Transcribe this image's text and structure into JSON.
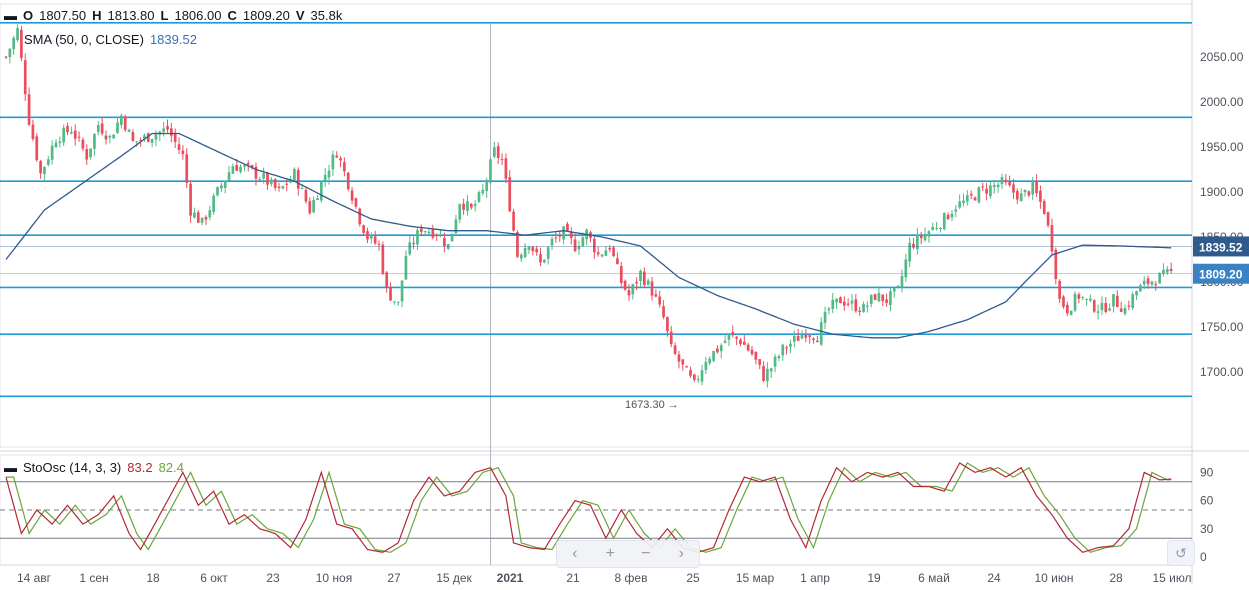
{
  "header": {
    "o_key": "O",
    "o_val": "1807.50",
    "h_key": "H",
    "h_val": "1813.80",
    "l_key": "L",
    "l_val": "1806.00",
    "c_key": "C",
    "c_val": "1809.20",
    "v_key": "V",
    "v_val": "35.8k"
  },
  "sma_legend": {
    "label": "SMA (50, 0, CLOSE)",
    "value": "1839.52",
    "color": "#2962ff"
  },
  "stoch_legend": {
    "label": "StoOsc (14, 3, 3)",
    "k_value": "83.2",
    "d_value": "82.4",
    "k_color": "#b22833",
    "d_color": "#6ba539"
  },
  "nav_buttons": {
    "left": "‹",
    "plus": "+",
    "minus": "−",
    "right": "›",
    "reset": "↺"
  },
  "chart_data": {
    "type": "candlestick",
    "y_axis": {
      "ylim": [
        1650,
        2100
      ],
      "ticks": [
        "1700.00",
        "1750.00",
        "1800.00",
        "1850.00",
        "1900.00",
        "1950.00",
        "2000.00",
        "2050.00"
      ]
    },
    "x_axis_labels": [
      "14 авг",
      "1 сен",
      "18",
      "6 окт",
      "23",
      "10 ноя",
      "27",
      "15 дек",
      "2021",
      "21",
      "8 фев",
      "25",
      "15 мар",
      "1 апр",
      "19",
      "6 май",
      "24",
      "10 июн",
      "28",
      "15 июл"
    ],
    "horizontal_levels": [
      2088,
      1983,
      1912,
      1852,
      1794,
      1742,
      1673
    ],
    "price_tags": [
      {
        "value": 1839.52,
        "label": "1839.52",
        "color": "#2f5a8c"
      },
      {
        "value": 1809.2,
        "label": "1809.20",
        "color": "#3b82c4"
      }
    ],
    "low_marker": {
      "label": "1673.30 →",
      "value": 1673.3
    },
    "close_path": [
      [
        0,
        2050
      ],
      [
        3,
        2080
      ],
      [
        6,
        1980
      ],
      [
        9,
        1920
      ],
      [
        13,
        1960
      ],
      [
        17,
        1970
      ],
      [
        21,
        1940
      ],
      [
        24,
        1975
      ],
      [
        27,
        1960
      ],
      [
        30,
        1985
      ],
      [
        33,
        1955
      ],
      [
        36,
        1960
      ],
      [
        39,
        1965
      ],
      [
        42,
        1970
      ],
      [
        46,
        1940
      ],
      [
        48,
        1880
      ],
      [
        51,
        1865
      ],
      [
        55,
        1900
      ],
      [
        59,
        1930
      ],
      [
        63,
        1925
      ],
      [
        67,
        1915
      ],
      [
        71,
        1900
      ],
      [
        75,
        1920
      ],
      [
        79,
        1880
      ],
      [
        83,
        1920
      ],
      [
        86,
        1945
      ],
      [
        89,
        1910
      ],
      [
        92,
        1870
      ],
      [
        94,
        1850
      ],
      [
        97,
        1840
      ],
      [
        99,
        1790
      ],
      [
        102,
        1775
      ],
      [
        104,
        1830
      ],
      [
        108,
        1860
      ],
      [
        112,
        1855
      ],
      [
        115,
        1840
      ],
      [
        118,
        1890
      ],
      [
        121,
        1880
      ],
      [
        124,
        1900
      ],
      [
        127,
        1945
      ],
      [
        129,
        1935
      ],
      [
        131,
        1885
      ],
      [
        133,
        1830
      ],
      [
        136,
        1845
      ],
      [
        139,
        1820
      ],
      [
        142,
        1845
      ],
      [
        145,
        1855
      ],
      [
        148,
        1840
      ],
      [
        151,
        1855
      ],
      [
        154,
        1830
      ],
      [
        157,
        1840
      ],
      [
        160,
        1800
      ],
      [
        162,
        1785
      ],
      [
        165,
        1810
      ],
      [
        168,
        1790
      ],
      [
        171,
        1760
      ],
      [
        173,
        1725
      ],
      [
        176,
        1705
      ],
      [
        179,
        1685
      ],
      [
        182,
        1715
      ],
      [
        185,
        1725
      ],
      [
        188,
        1740
      ],
      [
        191,
        1735
      ],
      [
        194,
        1720
      ],
      [
        197,
        1695
      ],
      [
        199,
        1705
      ],
      [
        202,
        1725
      ],
      [
        205,
        1735
      ],
      [
        208,
        1745
      ],
      [
        211,
        1740
      ],
      [
        214,
        1770
      ],
      [
        217,
        1780
      ],
      [
        220,
        1775
      ],
      [
        223,
        1770
      ],
      [
        226,
        1785
      ],
      [
        229,
        1780
      ],
      [
        232,
        1790
      ],
      [
        235,
        1840
      ],
      [
        238,
        1850
      ],
      [
        241,
        1860
      ],
      [
        244,
        1870
      ],
      [
        247,
        1885
      ],
      [
        250,
        1890
      ],
      [
        253,
        1900
      ],
      [
        256,
        1905
      ],
      [
        259,
        1910
      ],
      [
        262,
        1900
      ],
      [
        264,
        1895
      ],
      [
        267,
        1905
      ],
      [
        270,
        1880
      ],
      [
        272,
        1840
      ],
      [
        274,
        1780
      ],
      [
        276,
        1770
      ],
      [
        279,
        1785
      ],
      [
        282,
        1775
      ],
      [
        285,
        1770
      ],
      [
        288,
        1780
      ],
      [
        291,
        1770
      ],
      [
        294,
        1790
      ],
      [
        297,
        1800
      ],
      [
        300,
        1805
      ],
      [
        303,
        1810
      ]
    ],
    "sma_path": [
      [
        0,
        1825
      ],
      [
        10,
        1880
      ],
      [
        20,
        1910
      ],
      [
        30,
        1940
      ],
      [
        38,
        1965
      ],
      [
        45,
        1965
      ],
      [
        55,
        1945
      ],
      [
        65,
        1925
      ],
      [
        75,
        1912
      ],
      [
        85,
        1890
      ],
      [
        95,
        1870
      ],
      [
        105,
        1862
      ],
      [
        115,
        1857
      ],
      [
        125,
        1857
      ],
      [
        135,
        1852
      ],
      [
        145,
        1857
      ],
      [
        155,
        1850
      ],
      [
        165,
        1840
      ],
      [
        175,
        1805
      ],
      [
        185,
        1785
      ],
      [
        195,
        1770
      ],
      [
        205,
        1753
      ],
      [
        215,
        1742
      ],
      [
        225,
        1738
      ],
      [
        232,
        1738
      ],
      [
        240,
        1745
      ],
      [
        250,
        1758
      ],
      [
        260,
        1778
      ],
      [
        265,
        1800
      ],
      [
        272,
        1830
      ],
      [
        280,
        1841
      ],
      [
        290,
        1840
      ],
      [
        303,
        1838
      ]
    ],
    "stoch_k": [
      [
        0,
        85
      ],
      [
        4,
        25
      ],
      [
        8,
        50
      ],
      [
        12,
        35
      ],
      [
        16,
        55
      ],
      [
        20,
        35
      ],
      [
        24,
        45
      ],
      [
        28,
        65
      ],
      [
        32,
        25
      ],
      [
        35,
        8
      ],
      [
        38,
        30
      ],
      [
        42,
        60
      ],
      [
        46,
        90
      ],
      [
        50,
        55
      ],
      [
        54,
        70
      ],
      [
        58,
        35
      ],
      [
        62,
        45
      ],
      [
        66,
        30
      ],
      [
        70,
        25
      ],
      [
        74,
        10
      ],
      [
        78,
        40
      ],
      [
        82,
        90
      ],
      [
        86,
        35
      ],
      [
        90,
        30
      ],
      [
        94,
        8
      ],
      [
        98,
        5
      ],
      [
        102,
        15
      ],
      [
        106,
        60
      ],
      [
        110,
        85
      ],
      [
        114,
        65
      ],
      [
        118,
        70
      ],
      [
        122,
        90
      ],
      [
        126,
        95
      ],
      [
        130,
        65
      ],
      [
        132,
        15
      ],
      [
        136,
        10
      ],
      [
        140,
        8
      ],
      [
        144,
        35
      ],
      [
        148,
        60
      ],
      [
        152,
        55
      ],
      [
        156,
        20
      ],
      [
        160,
        50
      ],
      [
        164,
        25
      ],
      [
        168,
        10
      ],
      [
        172,
        30
      ],
      [
        176,
        10
      ],
      [
        180,
        5
      ],
      [
        184,
        10
      ],
      [
        188,
        50
      ],
      [
        192,
        85
      ],
      [
        196,
        80
      ],
      [
        200,
        85
      ],
      [
        204,
        40
      ],
      [
        208,
        10
      ],
      [
        212,
        60
      ],
      [
        216,
        95
      ],
      [
        220,
        80
      ],
      [
        224,
        90
      ],
      [
        228,
        85
      ],
      [
        232,
        90
      ],
      [
        236,
        75
      ],
      [
        240,
        75
      ],
      [
        244,
        70
      ],
      [
        248,
        100
      ],
      [
        252,
        90
      ],
      [
        256,
        95
      ],
      [
        260,
        85
      ],
      [
        264,
        95
      ],
      [
        268,
        65
      ],
      [
        272,
        45
      ],
      [
        276,
        20
      ],
      [
        280,
        5
      ],
      [
        284,
        10
      ],
      [
        288,
        12
      ],
      [
        292,
        30
      ],
      [
        296,
        90
      ],
      [
        300,
        82
      ],
      [
        303,
        83
      ]
    ],
    "stoch_levels": [
      80,
      50,
      20
    ],
    "stoch_ticks": [
      "90",
      "60",
      "30",
      "0"
    ]
  }
}
